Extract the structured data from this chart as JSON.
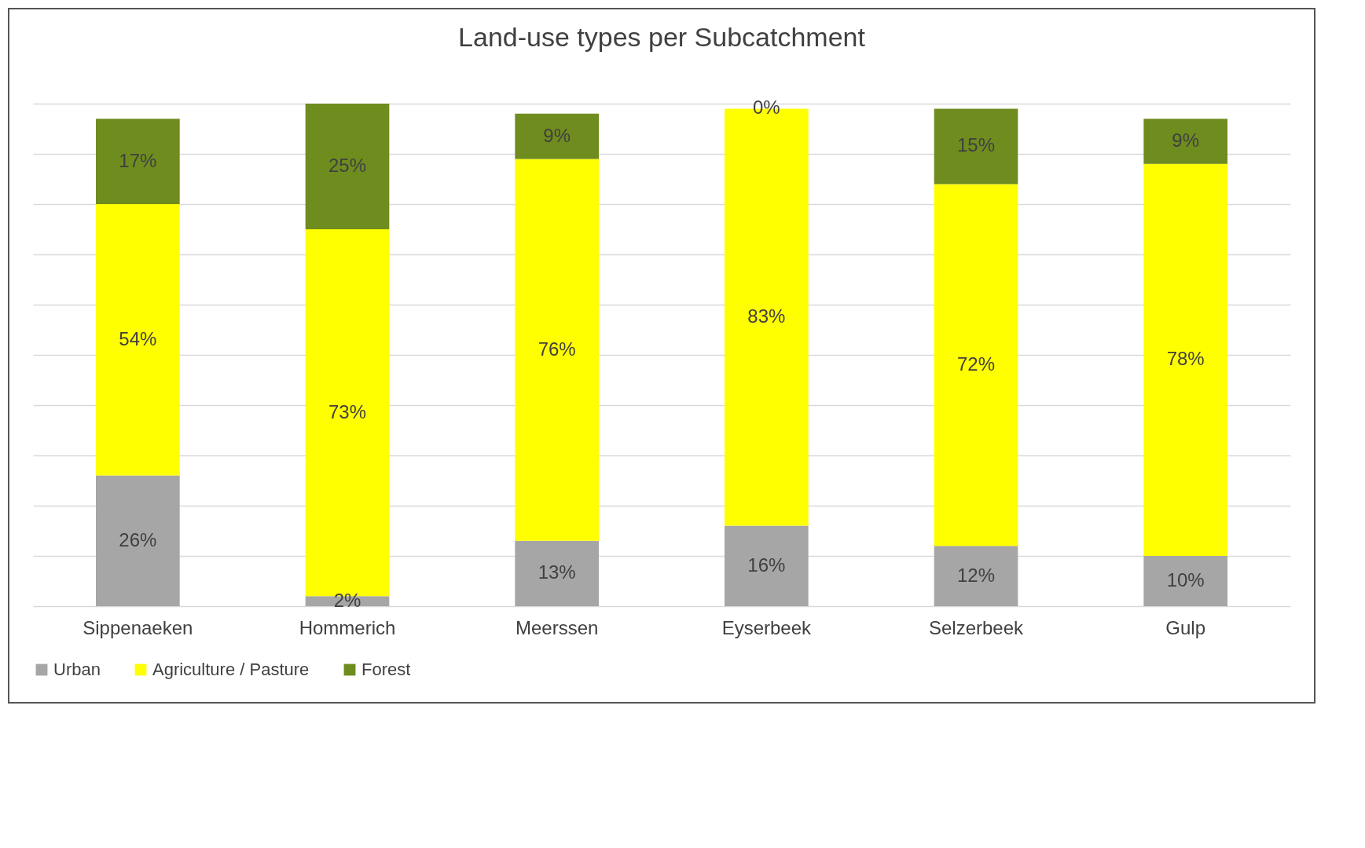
{
  "chart_data": {
    "type": "bar",
    "title": "Land-use types per Subcatchment",
    "categories": [
      "Sippenaeken",
      "Hommerich",
      "Meerssen",
      "Eyserbeek",
      "Selzerbeek",
      "Gulp"
    ],
    "stacked": true,
    "grid": "y",
    "legend": "bottom",
    "tick_labels": "x",
    "series": [
      {
        "name": "Urban",
        "color": "#a6a6a6",
        "values": [
          26,
          2,
          13,
          16,
          12,
          10
        ],
        "value_labels": [
          "26%",
          "2%",
          "13%",
          "16%",
          "12%",
          "10%"
        ]
      },
      {
        "name": "Agriculture / Pasture",
        "color": "#ffff00",
        "values": [
          54,
          73,
          76,
          83,
          72,
          78
        ],
        "value_labels": [
          "54%",
          "73%",
          "76%",
          "83%",
          "72%",
          "78%"
        ]
      },
      {
        "name": "Forest",
        "color": "#6f8c1f",
        "values": [
          17,
          25,
          9,
          0,
          15,
          9
        ],
        "value_labels": [
          "17%",
          "25%",
          "9%",
          "0%",
          "15%",
          "9%"
        ]
      }
    ]
  }
}
